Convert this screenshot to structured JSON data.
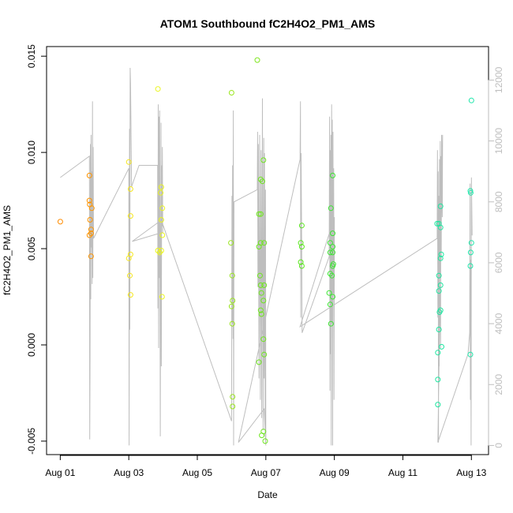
{
  "chart_data": {
    "type": "scatter",
    "title": "ATOM1 Southbound fC2H4O2_PM1_AMS",
    "xlabel": "Date",
    "ylabel": "fC2H4O2_PM1_AMS",
    "x_tick_labels": [
      "Aug 01",
      "Aug 03",
      "Aug 05",
      "Aug 07",
      "Aug 09",
      "Aug 11",
      "Aug 13"
    ],
    "x_tick_values": [
      1,
      3,
      5,
      7,
      9,
      11,
      13
    ],
    "xlim": [
      0.6,
      13.5
    ],
    "y_tick_labels": [
      "-0.005",
      "0.000",
      "0.005",
      "0.010",
      "0.015"
    ],
    "y_tick_values": [
      -0.005,
      0.0,
      0.005,
      0.01,
      0.015
    ],
    "ylim": [
      -0.0057,
      0.0155
    ],
    "y2_tick_labels": [
      "0",
      "2000",
      "4000",
      "6000",
      "8000",
      "10000",
      "12000"
    ],
    "y2_tick_values": [
      0,
      2000,
      4000,
      6000,
      8000,
      10000,
      12000
    ],
    "y2lim": [
      -300,
      13100
    ],
    "grid": false,
    "colors": {
      "axis": "#000000",
      "line": "#bebebe"
    },
    "series": [
      {
        "kind": "points",
        "axis": "left",
        "points": [
          {
            "x": 1.0,
            "y": 0.0064,
            "c": "#ff8c00"
          },
          {
            "x": 1.85,
            "y": 0.0088,
            "c": "#ff9400"
          },
          {
            "x": 1.85,
            "y": 0.0075,
            "c": "#ff9400"
          },
          {
            "x": 1.86,
            "y": 0.0073,
            "c": "#ff9400"
          },
          {
            "x": 1.92,
            "y": 0.0071,
            "c": "#ff9600"
          },
          {
            "x": 1.87,
            "y": 0.0065,
            "c": "#ff9400"
          },
          {
            "x": 1.9,
            "y": 0.006,
            "c": "#ff9500"
          },
          {
            "x": 1.9,
            "y": 0.0058,
            "c": "#ff9500"
          },
          {
            "x": 1.85,
            "y": 0.0057,
            "c": "#ff9400"
          },
          {
            "x": 1.9,
            "y": 0.0046,
            "c": "#ff9500"
          },
          {
            "x": 3.0,
            "y": 0.0095,
            "c": "#f5e61e"
          },
          {
            "x": 3.05,
            "y": 0.0081,
            "c": "#f5e61e"
          },
          {
            "x": 3.05,
            "y": 0.0067,
            "c": "#f5e61e"
          },
          {
            "x": 3.05,
            "y": 0.0047,
            "c": "#f5e61e"
          },
          {
            "x": 3.0,
            "y": 0.0045,
            "c": "#f5e61e"
          },
          {
            "x": 3.03,
            "y": 0.0036,
            "c": "#f5e61e"
          },
          {
            "x": 3.05,
            "y": 0.0026,
            "c": "#f5e61e"
          },
          {
            "x": 3.85,
            "y": 0.0133,
            "c": "#eaf51e"
          },
          {
            "x": 3.95,
            "y": 0.0082,
            "c": "#eaf51e"
          },
          {
            "x": 3.93,
            "y": 0.0079,
            "c": "#eaf51e"
          },
          {
            "x": 3.98,
            "y": 0.0071,
            "c": "#eaf51e"
          },
          {
            "x": 3.95,
            "y": 0.0065,
            "c": "#eaf51e"
          },
          {
            "x": 3.98,
            "y": 0.0057,
            "c": "#eaf51e"
          },
          {
            "x": 3.85,
            "y": 0.0049,
            "c": "#eaf51e"
          },
          {
            "x": 3.9,
            "y": 0.0048,
            "c": "#eaf51e"
          },
          {
            "x": 3.95,
            "y": 0.0049,
            "c": "#eaf51e"
          },
          {
            "x": 3.97,
            "y": 0.0025,
            "c": "#eaf51e"
          },
          {
            "x": 6.0,
            "y": 0.0131,
            "c": "#9ae61e"
          },
          {
            "x": 5.98,
            "y": 0.0053,
            "c": "#9ae61e"
          },
          {
            "x": 6.02,
            "y": 0.0036,
            "c": "#9ae61e"
          },
          {
            "x": 6.03,
            "y": 0.0023,
            "c": "#9ae61e"
          },
          {
            "x": 6.0,
            "y": 0.002,
            "c": "#9ae61e"
          },
          {
            "x": 6.02,
            "y": 0.0011,
            "c": "#9ae61e"
          },
          {
            "x": 6.03,
            "y": -0.0027,
            "c": "#9ae61e"
          },
          {
            "x": 6.03,
            "y": -0.0032,
            "c": "#9ae61e"
          },
          {
            "x": 6.75,
            "y": 0.0148,
            "c": "#7ee61e"
          },
          {
            "x": 6.85,
            "y": 0.0086,
            "c": "#6ee61e"
          },
          {
            "x": 6.9,
            "y": 0.0085,
            "c": "#6ee61e"
          },
          {
            "x": 6.93,
            "y": 0.0096,
            "c": "#6ee61e"
          },
          {
            "x": 6.8,
            "y": 0.0068,
            "c": "#6ee61e"
          },
          {
            "x": 6.85,
            "y": 0.0068,
            "c": "#6ee61e"
          },
          {
            "x": 6.85,
            "y": 0.0053,
            "c": "#6ee61e"
          },
          {
            "x": 6.8,
            "y": 0.0051,
            "c": "#6ee61e"
          },
          {
            "x": 6.95,
            "y": 0.0053,
            "c": "#6ee61e"
          },
          {
            "x": 6.83,
            "y": 0.0036,
            "c": "#6ee61e"
          },
          {
            "x": 6.85,
            "y": 0.0031,
            "c": "#6ee61e"
          },
          {
            "x": 6.95,
            "y": 0.0031,
            "c": "#6ee61e"
          },
          {
            "x": 6.87,
            "y": 0.0027,
            "c": "#6ee61e"
          },
          {
            "x": 6.93,
            "y": 0.0023,
            "c": "#6ee61e"
          },
          {
            "x": 6.85,
            "y": 0.0018,
            "c": "#6ee61e"
          },
          {
            "x": 6.87,
            "y": 0.0016,
            "c": "#6ee61e"
          },
          {
            "x": 6.93,
            "y": 0.0003,
            "c": "#6ee61e"
          },
          {
            "x": 6.95,
            "y": -0.0005,
            "c": "#6ee61e"
          },
          {
            "x": 6.8,
            "y": -0.0009,
            "c": "#6ee61e"
          },
          {
            "x": 6.93,
            "y": -0.0045,
            "c": "#6ee61e"
          },
          {
            "x": 6.88,
            "y": -0.0047,
            "c": "#6ee61e"
          },
          {
            "x": 6.98,
            "y": -0.005,
            "c": "#6ee61e"
          },
          {
            "x": 8.05,
            "y": 0.0062,
            "c": "#5ae61e"
          },
          {
            "x": 8.02,
            "y": 0.0053,
            "c": "#5ae61e"
          },
          {
            "x": 8.05,
            "y": 0.0051,
            "c": "#5ae61e"
          },
          {
            "x": 8.02,
            "y": 0.0043,
            "c": "#5ae61e"
          },
          {
            "x": 8.05,
            "y": 0.0041,
            "c": "#5ae61e"
          },
          {
            "x": 8.95,
            "y": 0.0088,
            "c": "#3ce632"
          },
          {
            "x": 8.9,
            "y": 0.0071,
            "c": "#3ce632"
          },
          {
            "x": 8.95,
            "y": 0.0058,
            "c": "#3ce632"
          },
          {
            "x": 8.88,
            "y": 0.0053,
            "c": "#3ce632"
          },
          {
            "x": 8.95,
            "y": 0.0051,
            "c": "#3ce632"
          },
          {
            "x": 8.88,
            "y": 0.0048,
            "c": "#3ce632"
          },
          {
            "x": 8.95,
            "y": 0.0048,
            "c": "#3ce632"
          },
          {
            "x": 8.97,
            "y": 0.0042,
            "c": "#3ce632"
          },
          {
            "x": 8.95,
            "y": 0.0041,
            "c": "#3ce632"
          },
          {
            "x": 8.88,
            "y": 0.0037,
            "c": "#3ce632"
          },
          {
            "x": 8.93,
            "y": 0.0036,
            "c": "#3ce632"
          },
          {
            "x": 8.85,
            "y": 0.0027,
            "c": "#3ce632"
          },
          {
            "x": 8.95,
            "y": 0.0025,
            "c": "#3ce632"
          },
          {
            "x": 8.88,
            "y": 0.0021,
            "c": "#3ce632"
          },
          {
            "x": 8.9,
            "y": 0.0011,
            "c": "#3ce632"
          },
          {
            "x": 12.0,
            "y": 0.0063,
            "c": "#1ee6a0"
          },
          {
            "x": 12.05,
            "y": 0.0063,
            "c": "#1ee6a0"
          },
          {
            "x": 12.1,
            "y": 0.0061,
            "c": "#1ee6a0"
          },
          {
            "x": 12.1,
            "y": 0.0072,
            "c": "#1ee6a0"
          },
          {
            "x": 12.12,
            "y": 0.0047,
            "c": "#1ee6a0"
          },
          {
            "x": 12.1,
            "y": 0.0045,
            "c": "#1ee6a0"
          },
          {
            "x": 12.05,
            "y": 0.0036,
            "c": "#1ee6a0"
          },
          {
            "x": 12.1,
            "y": 0.0031,
            "c": "#1ee6a0"
          },
          {
            "x": 12.05,
            "y": 0.0028,
            "c": "#1ee6a0"
          },
          {
            "x": 12.1,
            "y": 0.0018,
            "c": "#1ee6a0"
          },
          {
            "x": 12.07,
            "y": 0.0017,
            "c": "#1ee6a0"
          },
          {
            "x": 12.05,
            "y": 0.0008,
            "c": "#1ee6a0"
          },
          {
            "x": 12.13,
            "y": -0.0001,
            "c": "#1ee6a0"
          },
          {
            "x": 12.02,
            "y": -0.0004,
            "c": "#1ee6a0"
          },
          {
            "x": 12.02,
            "y": -0.0018,
            "c": "#1ee6a0"
          },
          {
            "x": 12.02,
            "y": -0.0031,
            "c": "#1ee6a0"
          },
          {
            "x": 13.0,
            "y": 0.0127,
            "c": "#1ee6aa"
          },
          {
            "x": 12.97,
            "y": 0.008,
            "c": "#1ee6aa"
          },
          {
            "x": 12.98,
            "y": 0.0079,
            "c": "#1ee6aa"
          },
          {
            "x": 13.0,
            "y": 0.0053,
            "c": "#1ee6aa"
          },
          {
            "x": 12.98,
            "y": 0.0048,
            "c": "#1ee6aa"
          },
          {
            "x": 12.97,
            "y": 0.0041,
            "c": "#1ee6aa"
          },
          {
            "x": 12.97,
            "y": -0.0005,
            "c": "#1ee6aa"
          }
        ]
      },
      {
        "kind": "line",
        "axis": "right",
        "color": "#bebebe",
        "points": [
          [
            1.0,
            8800
          ],
          [
            1.85,
            9500
          ],
          [
            1.86,
            200
          ],
          [
            1.87,
            3000
          ],
          [
            1.88,
            9900
          ],
          [
            1.89,
            4800
          ],
          [
            1.9,
            10200
          ],
          [
            1.91,
            6500
          ],
          [
            1.92,
            9000
          ],
          [
            1.93,
            5300
          ],
          [
            1.94,
            11300
          ],
          [
            1.95,
            5500
          ],
          [
            1.96,
            9800
          ],
          [
            1.97,
            6800
          ],
          [
            3.0,
            9100
          ],
          [
            3.01,
            0
          ],
          [
            3.02,
            10400
          ],
          [
            3.03,
            3800
          ],
          [
            3.04,
            12400
          ],
          [
            3.05,
            11900
          ],
          [
            3.08,
            8500
          ],
          [
            3.3,
            9200
          ],
          [
            3.84,
            9200
          ],
          [
            3.85,
            4500
          ],
          [
            3.86,
            11200
          ],
          [
            3.87,
            3200
          ],
          [
            3.88,
            10800
          ],
          [
            3.89,
            5500
          ],
          [
            3.9,
            11000
          ],
          [
            3.92,
            300
          ],
          [
            3.93,
            6500
          ],
          [
            3.94,
            10600
          ],
          [
            3.95,
            2600
          ],
          [
            3.96,
            9200
          ],
          [
            3.97,
            7200
          ],
          [
            3.98,
            9800
          ],
          [
            3.99,
            7000
          ],
          [
            3.1,
            6700
          ],
          [
            3.95,
            7400
          ],
          [
            6.0,
            800
          ],
          [
            6.01,
            8200
          ],
          [
            6.02,
            4000
          ],
          [
            6.03,
            9200
          ],
          [
            6.04,
            3500
          ],
          [
            6.05,
            11000
          ],
          [
            6.06,
            0
          ],
          [
            6.07,
            8000
          ],
          [
            6.75,
            8400
          ],
          [
            6.76,
            10300
          ],
          [
            6.77,
            5200
          ],
          [
            6.78,
            9900
          ],
          [
            6.8,
            2200
          ],
          [
            6.82,
            10200
          ],
          [
            6.84,
            1500
          ],
          [
            6.86,
            9700
          ],
          [
            6.88,
            900
          ],
          [
            6.9,
            11400
          ],
          [
            6.92,
            500
          ],
          [
            6.94,
            10100
          ],
          [
            6.95,
            2200
          ],
          [
            6.96,
            9600
          ],
          [
            6.98,
            300
          ],
          [
            6.99,
            8400
          ],
          [
            7.0,
            0
          ],
          [
            6.95,
            1200
          ],
          [
            6.2,
            100
          ],
          [
            8.0,
            9400
          ],
          [
            8.01,
            11300
          ],
          [
            8.02,
            4200
          ],
          [
            8.03,
            9600
          ],
          [
            8.05,
            6000
          ],
          [
            8.06,
            3700
          ],
          [
            8.85,
            6200
          ],
          [
            8.86,
            10800
          ],
          [
            8.87,
            1800
          ],
          [
            8.88,
            9700
          ],
          [
            8.89,
            3000
          ],
          [
            8.9,
            10200
          ],
          [
            8.91,
            0
          ],
          [
            8.92,
            11200
          ],
          [
            8.93,
            4000
          ],
          [
            8.94,
            10700
          ],
          [
            8.95,
            0
          ],
          [
            8.96,
            10300
          ],
          [
            8.97,
            5000
          ],
          [
            8.98,
            9100
          ],
          [
            8.99,
            1500
          ],
          [
            9.0,
            7500
          ],
          [
            8.0,
            3900
          ],
          [
            12.0,
            6800
          ],
          [
            12.01,
            9700
          ],
          [
            12.02,
            4200
          ],
          [
            12.03,
            9000
          ],
          [
            12.04,
            100
          ],
          [
            12.05,
            8200
          ],
          [
            12.06,
            2600
          ],
          [
            12.07,
            9400
          ],
          [
            12.08,
            5500
          ],
          [
            12.09,
            10000
          ],
          [
            12.1,
            3200
          ],
          [
            12.11,
            9500
          ],
          [
            12.12,
            6100
          ],
          [
            12.13,
            10200
          ],
          [
            12.15,
            7500
          ],
          [
            12.16,
            10200
          ],
          [
            12.02,
            100
          ],
          [
            12.05,
            200
          ],
          [
            12.9,
            3000
          ],
          [
            12.95,
            3700
          ],
          [
            12.96,
            8600
          ],
          [
            12.97,
            1500
          ],
          [
            12.98,
            6100
          ],
          [
            12.99,
            0
          ],
          [
            13.0,
            8800
          ],
          [
            13.02,
            6900
          ]
        ]
      }
    ]
  }
}
